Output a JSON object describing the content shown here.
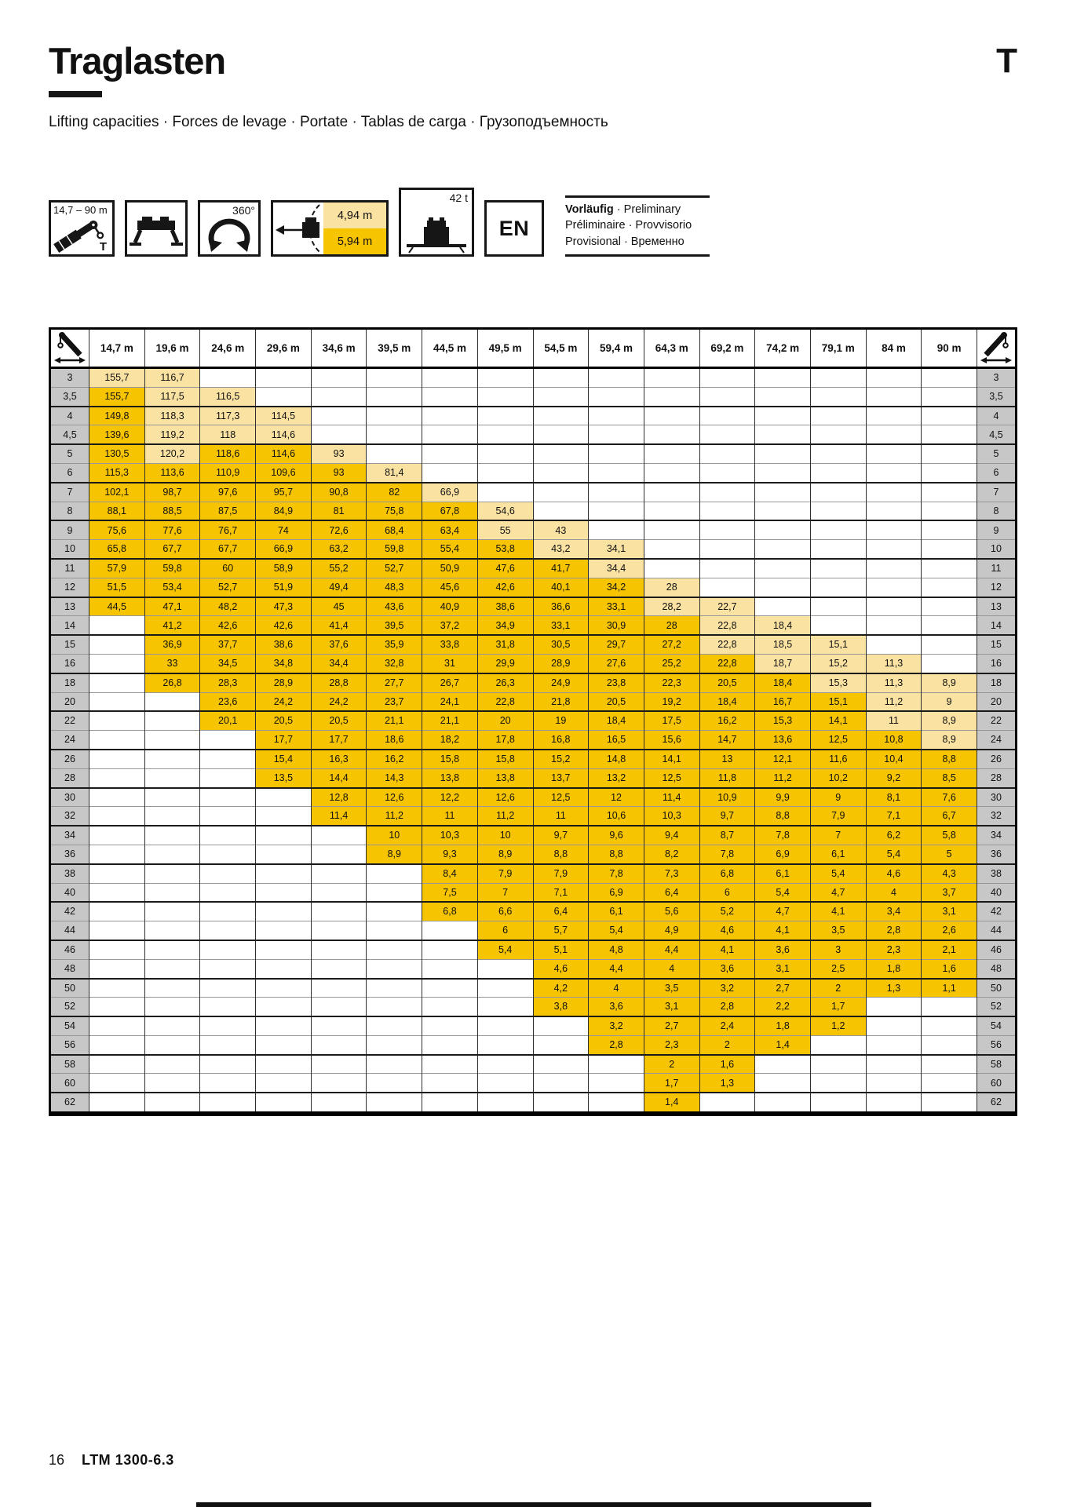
{
  "page": {
    "title": "Traglasten",
    "corner_letter": "T",
    "subtitle": "Lifting capacities · Forces de levage · Portate · Tablas de carga · Грузоподъемность",
    "footer": {
      "page_number": "16",
      "model": "LTM 1300-6.3"
    }
  },
  "legend": {
    "boom_range": "14,7 – 90 m",
    "boom_letter": "T",
    "slewing": "360°",
    "tail_radius_small": "4,94 m",
    "tail_radius_large": "5,94 m",
    "counterweight": "42 t",
    "language": "EN",
    "status": {
      "line1_bold": "Vorläufig",
      "line1_rest": " · Preliminary",
      "line2": "Préliminaire · Provvisorio",
      "line3": "Provisional · Временно"
    }
  },
  "colors": {
    "gold": "#F6C400",
    "pale": "#FAE2A3",
    "radius_gray": "#C7C7C7"
  },
  "table": {
    "columns": [
      "14,7 m",
      "19,6 m",
      "24,6 m",
      "29,6 m",
      "34,6 m",
      "39,5 m",
      "44,5 m",
      "49,5 m",
      "54,5 m",
      "59,4 m",
      "64,3 m",
      "69,2 m",
      "74,2 m",
      "79,1 m",
      "84 m",
      "90 m"
    ],
    "rows": [
      {
        "r": "3",
        "v": [
          "155,7",
          "116,7",
          "",
          "",
          "",
          "",
          "",
          "",
          "",
          "",
          "",
          "",
          "",
          "",
          "",
          ""
        ],
        "pale": [
          0,
          1
        ]
      },
      {
        "r": "3,5",
        "v": [
          "155,7",
          "117,5",
          "116,5",
          "",
          "",
          "",
          "",
          "",
          "",
          "",
          "",
          "",
          "",
          "",
          "",
          ""
        ],
        "pale": [
          1,
          2
        ]
      },
      {
        "r": "4",
        "v": [
          "149,8",
          "118,3",
          "117,3",
          "114,5",
          "",
          "",
          "",
          "",
          "",
          "",
          "",
          "",
          "",
          "",
          "",
          ""
        ],
        "pale": [
          1,
          2,
          3
        ]
      },
      {
        "r": "4,5",
        "v": [
          "139,6",
          "119,2",
          "118",
          "114,6",
          "",
          "",
          "",
          "",
          "",
          "",
          "",
          "",
          "",
          "",
          "",
          ""
        ],
        "pale": [
          1,
          2,
          3
        ]
      },
      {
        "r": "5",
        "v": [
          "130,5",
          "120,2",
          "118,6",
          "114,6",
          "93",
          "",
          "",
          "",
          "",
          "",
          "",
          "",
          "",
          "",
          "",
          ""
        ],
        "pale": [
          1,
          4
        ]
      },
      {
        "r": "6",
        "v": [
          "115,3",
          "113,6",
          "110,9",
          "109,6",
          "93",
          "81,4",
          "",
          "",
          "",
          "",
          "",
          "",
          "",
          "",
          "",
          ""
        ],
        "pale": [
          5
        ]
      },
      {
        "r": "7",
        "v": [
          "102,1",
          "98,7",
          "97,6",
          "95,7",
          "90,8",
          "82",
          "66,9",
          "",
          "",
          "",
          "",
          "",
          "",
          "",
          "",
          ""
        ],
        "pale": [
          6
        ]
      },
      {
        "r": "8",
        "v": [
          "88,1",
          "88,5",
          "87,5",
          "84,9",
          "81",
          "75,8",
          "67,8",
          "54,6",
          "",
          "",
          "",
          "",
          "",
          "",
          "",
          ""
        ],
        "pale": [
          7
        ]
      },
      {
        "r": "9",
        "v": [
          "75,6",
          "77,6",
          "76,7",
          "74",
          "72,6",
          "68,4",
          "63,4",
          "55",
          "43",
          "",
          "",
          "",
          "",
          "",
          "",
          ""
        ],
        "pale": [
          7,
          8
        ]
      },
      {
        "r": "10",
        "v": [
          "65,8",
          "67,7",
          "67,7",
          "66,9",
          "63,2",
          "59,8",
          "55,4",
          "53,8",
          "43,2",
          "34,1",
          "",
          "",
          "",
          "",
          "",
          ""
        ],
        "pale": [
          8,
          9
        ]
      },
      {
        "r": "11",
        "v": [
          "57,9",
          "59,8",
          "60",
          "58,9",
          "55,2",
          "52,7",
          "50,9",
          "47,6",
          "41,7",
          "34,4",
          "",
          "",
          "",
          "",
          "",
          ""
        ],
        "pale": [
          9
        ]
      },
      {
        "r": "12",
        "v": [
          "51,5",
          "53,4",
          "52,7",
          "51,9",
          "49,4",
          "48,3",
          "45,6",
          "42,6",
          "40,1",
          "34,2",
          "28",
          "",
          "",
          "",
          "",
          ""
        ],
        "pale": [
          10
        ]
      },
      {
        "r": "13",
        "v": [
          "44,5",
          "47,1",
          "48,2",
          "47,3",
          "45",
          "43,6",
          "40,9",
          "38,6",
          "36,6",
          "33,1",
          "28,2",
          "22,7",
          "",
          "",
          "",
          ""
        ],
        "pale": [
          10,
          11
        ]
      },
      {
        "r": "14",
        "v": [
          "",
          "41,2",
          "42,6",
          "42,6",
          "41,4",
          "39,5",
          "37,2",
          "34,9",
          "33,1",
          "30,9",
          "28",
          "22,8",
          "18,4",
          "",
          "",
          ""
        ],
        "pale": [
          11,
          12
        ]
      },
      {
        "r": "15",
        "v": [
          "",
          "36,9",
          "37,7",
          "38,6",
          "37,6",
          "35,9",
          "33,8",
          "31,8",
          "30,5",
          "29,7",
          "27,2",
          "22,8",
          "18,5",
          "15,1",
          "",
          ""
        ],
        "pale": [
          11,
          12,
          13
        ]
      },
      {
        "r": "16",
        "v": [
          "",
          "33",
          "34,5",
          "34,8",
          "34,4",
          "32,8",
          "31",
          "29,9",
          "28,9",
          "27,6",
          "25,2",
          "22,8",
          "18,7",
          "15,2",
          "11,3",
          ""
        ],
        "pale": [
          12,
          13,
          14
        ]
      },
      {
        "r": "18",
        "v": [
          "",
          "26,8",
          "28,3",
          "28,9",
          "28,8",
          "27,7",
          "26,7",
          "26,3",
          "24,9",
          "23,8",
          "22,3",
          "20,5",
          "18,4",
          "15,3",
          "11,3",
          "8,9"
        ],
        "pale": [
          13,
          14,
          15
        ]
      },
      {
        "r": "20",
        "v": [
          "",
          "",
          "23,6",
          "24,2",
          "24,2",
          "23,7",
          "24,1",
          "22,8",
          "21,8",
          "20,5",
          "19,2",
          "18,4",
          "16,7",
          "15,1",
          "11,2",
          "9"
        ],
        "pale": [
          14,
          15
        ]
      },
      {
        "r": "22",
        "v": [
          "",
          "",
          "20,1",
          "20,5",
          "20,5",
          "21,1",
          "21,1",
          "20",
          "19",
          "18,4",
          "17,5",
          "16,2",
          "15,3",
          "14,1",
          "11",
          "8,9"
        ],
        "pale": [
          14,
          15
        ]
      },
      {
        "r": "24",
        "v": [
          "",
          "",
          "",
          "17,7",
          "17,7",
          "18,6",
          "18,2",
          "17,8",
          "16,8",
          "16,5",
          "15,6",
          "14,7",
          "13,6",
          "12,5",
          "10,8",
          "8,9"
        ],
        "pale": [
          15
        ]
      },
      {
        "r": "26",
        "v": [
          "",
          "",
          "",
          "15,4",
          "16,3",
          "16,2",
          "15,8",
          "15,8",
          "15,2",
          "14,8",
          "14,1",
          "13",
          "12,1",
          "11,6",
          "10,4",
          "8,8"
        ],
        "pale": []
      },
      {
        "r": "28",
        "v": [
          "",
          "",
          "",
          "13,5",
          "14,4",
          "14,3",
          "13,8",
          "13,8",
          "13,7",
          "13,2",
          "12,5",
          "11,8",
          "11,2",
          "10,2",
          "9,2",
          "8,5"
        ],
        "pale": []
      },
      {
        "r": "30",
        "v": [
          "",
          "",
          "",
          "",
          "12,8",
          "12,6",
          "12,2",
          "12,6",
          "12,5",
          "12",
          "11,4",
          "10,9",
          "9,9",
          "9",
          "8,1",
          "7,6"
        ],
        "pale": []
      },
      {
        "r": "32",
        "v": [
          "",
          "",
          "",
          "",
          "11,4",
          "11,2",
          "11",
          "11,2",
          "11",
          "10,6",
          "10,3",
          "9,7",
          "8,8",
          "7,9",
          "7,1",
          "6,7"
        ],
        "pale": []
      },
      {
        "r": "34",
        "v": [
          "",
          "",
          "",
          "",
          "",
          "10",
          "10,3",
          "10",
          "9,7",
          "9,6",
          "9,4",
          "8,7",
          "7,8",
          "7",
          "6,2",
          "5,8"
        ],
        "pale": []
      },
      {
        "r": "36",
        "v": [
          "",
          "",
          "",
          "",
          "",
          "8,9",
          "9,3",
          "8,9",
          "8,8",
          "8,8",
          "8,2",
          "7,8",
          "6,9",
          "6,1",
          "5,4",
          "5"
        ],
        "pale": []
      },
      {
        "r": "38",
        "v": [
          "",
          "",
          "",
          "",
          "",
          "",
          "8,4",
          "7,9",
          "7,9",
          "7,8",
          "7,3",
          "6,8",
          "6,1",
          "5,4",
          "4,6",
          "4,3"
        ],
        "pale": []
      },
      {
        "r": "40",
        "v": [
          "",
          "",
          "",
          "",
          "",
          "",
          "7,5",
          "7",
          "7,1",
          "6,9",
          "6,4",
          "6",
          "5,4",
          "4,7",
          "4",
          "3,7"
        ],
        "pale": []
      },
      {
        "r": "42",
        "v": [
          "",
          "",
          "",
          "",
          "",
          "",
          "6,8",
          "6,6",
          "6,4",
          "6,1",
          "5,6",
          "5,2",
          "4,7",
          "4,1",
          "3,4",
          "3,1"
        ],
        "pale": []
      },
      {
        "r": "44",
        "v": [
          "",
          "",
          "",
          "",
          "",
          "",
          "",
          "6",
          "5,7",
          "5,4",
          "4,9",
          "4,6",
          "4,1",
          "3,5",
          "2,8",
          "2,6"
        ],
        "pale": []
      },
      {
        "r": "46",
        "v": [
          "",
          "",
          "",
          "",
          "",
          "",
          "",
          "5,4",
          "5,1",
          "4,8",
          "4,4",
          "4,1",
          "3,6",
          "3",
          "2,3",
          "2,1"
        ],
        "pale": []
      },
      {
        "r": "48",
        "v": [
          "",
          "",
          "",
          "",
          "",
          "",
          "",
          "",
          "4,6",
          "4,4",
          "4",
          "3,6",
          "3,1",
          "2,5",
          "1,8",
          "1,6"
        ],
        "pale": []
      },
      {
        "r": "50",
        "v": [
          "",
          "",
          "",
          "",
          "",
          "",
          "",
          "",
          "4,2",
          "4",
          "3,5",
          "3,2",
          "2,7",
          "2",
          "1,3",
          "1,1"
        ],
        "pale": []
      },
      {
        "r": "52",
        "v": [
          "",
          "",
          "",
          "",
          "",
          "",
          "",
          "",
          "3,8",
          "3,6",
          "3,1",
          "2,8",
          "2,2",
          "1,7",
          "",
          ""
        ],
        "pale": []
      },
      {
        "r": "54",
        "v": [
          "",
          "",
          "",
          "",
          "",
          "",
          "",
          "",
          "",
          "3,2",
          "2,7",
          "2,4",
          "1,8",
          "1,2",
          "",
          ""
        ],
        "pale": []
      },
      {
        "r": "56",
        "v": [
          "",
          "",
          "",
          "",
          "",
          "",
          "",
          "",
          "",
          "2,8",
          "2,3",
          "2",
          "1,4",
          "",
          "",
          ""
        ],
        "pale": []
      },
      {
        "r": "58",
        "v": [
          "",
          "",
          "",
          "",
          "",
          "",
          "",
          "",
          "",
          "",
          "2",
          "1,6",
          "",
          "",
          "",
          ""
        ],
        "pale": []
      },
      {
        "r": "60",
        "v": [
          "",
          "",
          "",
          "",
          "",
          "",
          "",
          "",
          "",
          "",
          "1,7",
          "1,3",
          "",
          "",
          "",
          ""
        ],
        "pale": []
      },
      {
        "r": "62",
        "v": [
          "",
          "",
          "",
          "",
          "",
          "",
          "",
          "",
          "",
          "",
          "1,4",
          "",
          "",
          "",
          "",
          ""
        ],
        "pale": []
      }
    ]
  }
}
